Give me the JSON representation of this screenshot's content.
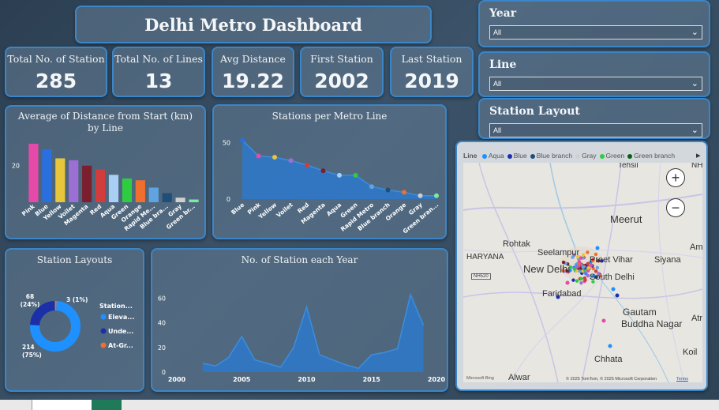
{
  "dashboard": {
    "title": "Delhi Metro Dashboard"
  },
  "kpis": [
    {
      "label": "Total No. of Station",
      "value": "285"
    },
    {
      "label": "Total No. of Lines",
      "value": "13"
    },
    {
      "label": "Avg Distance",
      "value": "19.22"
    },
    {
      "label": "First Station",
      "value": "2002"
    },
    {
      "label": "Last Station",
      "value": "2019"
    }
  ],
  "filters": [
    {
      "label": "Year",
      "value": "All"
    },
    {
      "label": "Line",
      "value": "All"
    },
    {
      "label": "Station Layout",
      "value": "All"
    }
  ],
  "map": {
    "legend_title": "Line",
    "legend": [
      {
        "name": "Aqua",
        "color": "#1e90ff"
      },
      {
        "name": "Blue",
        "color": "#1a2fa8"
      },
      {
        "name": "Blue  branch",
        "color": "#1f4e79"
      },
      {
        "name": "Gray",
        "color": "#d0d0d0"
      },
      {
        "name": "Green",
        "color": "#2ecc40"
      },
      {
        "name": "Green  branch",
        "color": "#0b5d1e"
      }
    ],
    "places": {
      "tehsil": "Tehsil",
      "meerut": "Meerut",
      "rohtak": "Rohtak",
      "seelampur": "Seelampur",
      "preet_vihar": "Preet Vihar",
      "siyana": "Siyana",
      "haryana": "HARYANA",
      "new_delhi": "New Delhi",
      "south_delhi": "South Delhi",
      "faridabad": "Faridabad",
      "gautam": "Gautam",
      "buddha_nagar": "Buddha Nagar",
      "chhata": "Chhata",
      "koil": "Koil",
      "alwar": "Alwar",
      "am": "Am",
      "atr": "Atr",
      "nh": "NH",
      "nh_shield": "NH520"
    },
    "attribution": "© 2025 TomTom, © 2025 Microsoft Corporation",
    "terms": "Terms",
    "bing": "Microsoft Bing"
  },
  "icons": {
    "zoom_in": "+",
    "zoom_out": "−",
    "scroll_right": "▸",
    "chevron": "⌄"
  },
  "charts": {
    "avg_distance": {
      "type": "bar",
      "title": "Average of Distance from Start (km) by Line",
      "categories": [
        "Pink",
        "Blue",
        "Yellow",
        "Voilet",
        "Magenta",
        "Red",
        "Aqua",
        "Green",
        "Orange",
        "Rapid Me...",
        "Blue bra...",
        "Gray",
        "Green br..."
      ],
      "values": [
        32,
        29,
        24,
        23,
        20,
        18,
        15,
        13,
        12,
        8,
        5,
        2.5,
        1.5
      ],
      "colors": [
        "#e64aa8",
        "#2a6fe0",
        "#e8c63b",
        "#9b6fd4",
        "#7b1f2f",
        "#d23c3c",
        "#a9cff5",
        "#2ecc40",
        "#f06f2e",
        "#5fa4e0",
        "#1f4e79",
        "#cfcfcf",
        "#7ee8a8"
      ],
      "ylim": [
        0,
        35
      ],
      "yticks": [
        "20"
      ]
    },
    "stations_per_line": {
      "type": "area",
      "title": "Stations per Metro Line",
      "categories": [
        "Blue",
        "Pink",
        "Yellow",
        "Voilet",
        "Red",
        "Magenta",
        "Aqua",
        "Green",
        "Rapid Metro",
        "Blue branch",
        "Orange",
        "Gray",
        "Green bran..."
      ],
      "values": [
        52,
        38,
        37,
        34,
        30,
        25,
        21,
        21,
        11,
        8,
        6,
        3,
        3
      ],
      "dot_colors": [
        "#2a6fe0",
        "#e64aa8",
        "#e8c63b",
        "#9b6fd4",
        "#d23c3c",
        "#7b1f2f",
        "#a9cff5",
        "#2ecc40",
        "#5fa4e0",
        "#1f4e79",
        "#f06f2e",
        "#cfcfcf",
        "#7ee8a8"
      ],
      "ylim": [
        0,
        60
      ],
      "yticks": [
        "0",
        "50"
      ]
    },
    "station_layouts": {
      "type": "pie",
      "title": "Station Layouts",
      "legend_title": "Station...",
      "slices": [
        {
          "name": "Eleva...",
          "value": 214,
          "pct": "75%",
          "color": "#1e90ff",
          "label_value": "214",
          "label_pct": "(75%)"
        },
        {
          "name": "Unde...",
          "value": 68,
          "pct": "24%",
          "color": "#1a2fa8",
          "label_value": "68",
          "label_pct": "(24%)"
        },
        {
          "name": "At-Gr...",
          "value": 3,
          "pct": "1%",
          "color": "#f06f2e",
          "label_value": "3 (1%)",
          "label_pct": ""
        }
      ]
    },
    "stations_per_year": {
      "type": "area",
      "title": "No. of Station each Year",
      "x": [
        2002,
        2003,
        2004,
        2005,
        2006,
        2007,
        2008,
        2009,
        2010,
        2011,
        2012,
        2013,
        2014,
        2015,
        2016,
        2017,
        2018,
        2019
      ],
      "values": [
        7,
        5,
        12,
        29,
        10,
        7,
        4,
        20,
        53,
        14,
        10,
        6,
        3,
        14,
        16,
        19,
        63,
        38
      ],
      "xlim": [
        2000,
        2020
      ],
      "ylim": [
        0,
        70
      ],
      "xticks": [
        "2000",
        "2005",
        "2010",
        "2015",
        "2020"
      ],
      "yticks": [
        "0",
        "20",
        "40",
        "60"
      ]
    }
  }
}
